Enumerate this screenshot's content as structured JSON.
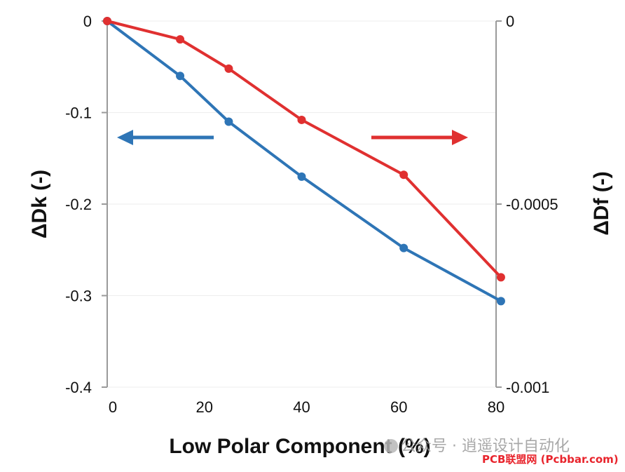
{
  "chart_data": {
    "type": "line",
    "title": "",
    "xlabel": "Low Polar Component (%)",
    "ylabel_left": "ΔDk (-)",
    "ylabel_right": "ΔDf (-)",
    "xlim": [
      0,
      80
    ],
    "ylim_left": [
      -0.4,
      0
    ],
    "ylim_right": [
      -0.001,
      0
    ],
    "x_ticks": [
      "0",
      "20",
      "40",
      "60",
      "80"
    ],
    "x_tick_values": [
      0,
      20,
      40,
      60,
      80
    ],
    "y_left_ticks": [
      "0",
      "-0.1",
      "-0.2",
      "-0.3",
      "-0.4"
    ],
    "y_left_tick_values": [
      0,
      -0.1,
      -0.2,
      -0.3,
      -0.4
    ],
    "y_right_ticks": [
      "0",
      "-0.0005",
      "-0.001"
    ],
    "y_right_tick_values": [
      0,
      -0.0005,
      -0.001
    ],
    "grid": "horizontal",
    "series": [
      {
        "axis": "left",
        "color": "#2e75b6",
        "x": [
          0,
          15,
          25,
          40,
          61,
          81
        ],
        "values": [
          0,
          -0.06,
          -0.11,
          -0.17,
          -0.248,
          -0.306
        ]
      },
      {
        "axis": "right",
        "color": "#e03030",
        "x": [
          0,
          15,
          25,
          40,
          61,
          81
        ],
        "values": [
          0,
          -5e-05,
          -0.00013,
          -0.00027,
          -0.00042,
          -0.0007
        ]
      }
    ],
    "annotations": [
      {
        "name": "left-arrow",
        "direction": "left",
        "color": "#2e75b6"
      },
      {
        "name": "right-arrow",
        "direction": "right",
        "color": "#e03030"
      }
    ]
  },
  "watermark": {
    "line1": "公众号 · 逍遥设计自动化",
    "line2": "PCB联盟网 (Pcbbar.com)"
  }
}
